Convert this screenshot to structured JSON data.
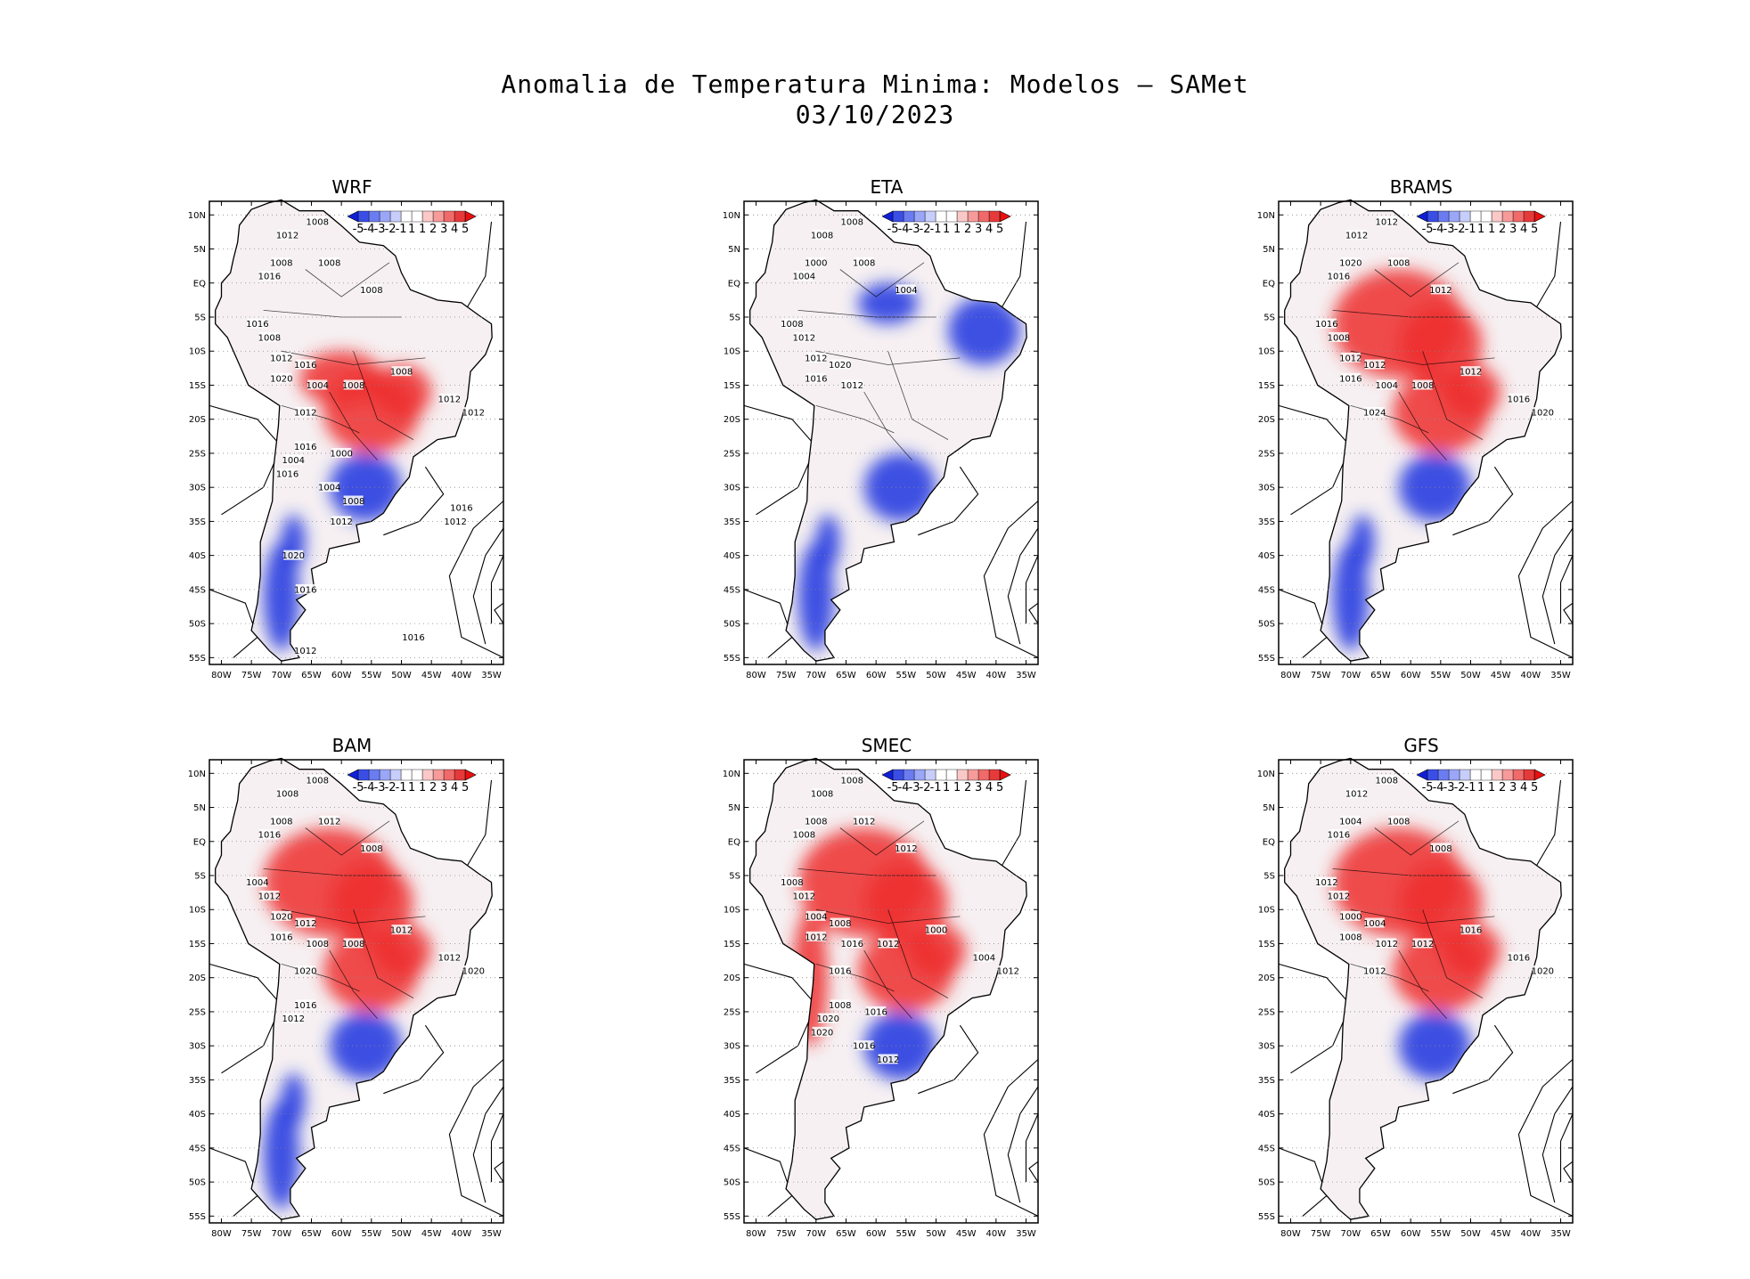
{
  "title": {
    "line1": "Anomalia de Temperatura Minima: Modelos — SAMet",
    "line2": "03/10/2023"
  },
  "axes": {
    "lat_labels": [
      "10N",
      "5N",
      "EQ",
      "5S",
      "10S",
      "15S",
      "20S",
      "25S",
      "30S",
      "35S",
      "40S",
      "45S",
      "50S",
      "55S"
    ],
    "lon_labels": [
      "80W",
      "75W",
      "70W",
      "65W",
      "60W",
      "55W",
      "50W",
      "45W",
      "40W",
      "35W"
    ]
  },
  "colorbar": {
    "labels": [
      "-5",
      "-4",
      "-3",
      "-2",
      "-1",
      "1",
      "1",
      "2",
      "3",
      "4",
      "5"
    ],
    "colors": [
      "#1020d8",
      "#3a4ee6",
      "#6a7cf0",
      "#9aa6f6",
      "#c8cefb",
      "#ffffff",
      "#ffffff",
      "#fbc8c8",
      "#f69a9a",
      "#f06a6a",
      "#e63a3a",
      "#e81010"
    ]
  },
  "panels": [
    {
      "name": "WRF",
      "warm": [
        "center-west",
        "south-brazil-north"
      ],
      "cold": [
        "south",
        "patagonia"
      ],
      "isobars": [
        "1008",
        "1012",
        "1008",
        "1016",
        "1008",
        "1008",
        "1016",
        "1008",
        "1012",
        "1016",
        "1020",
        "1004",
        "1008",
        "1008",
        "1012",
        "1012",
        "1012",
        "1016",
        "1004",
        "1000",
        "1016",
        "1004",
        "1008",
        "1012",
        "1016",
        "1012",
        "1020",
        "1016",
        "1016",
        "1012"
      ]
    },
    {
      "name": "ETA",
      "warm": [],
      "cold": [
        "northeast",
        "south",
        "patagonia"
      ],
      "isobars": [
        "1008",
        "1008",
        "1008",
        "1004",
        "1000",
        "1004",
        "1008",
        "1012",
        "1012",
        "1020",
        "1016",
        "1012"
      ]
    },
    {
      "name": "BRAMS",
      "warm": [
        "amazon",
        "center-west"
      ],
      "cold": [
        "south",
        "patagonia"
      ],
      "isobars": [
        "1012",
        "1012",
        "1008",
        "1016",
        "1020",
        "1012",
        "1016",
        "1008",
        "1012",
        "1012",
        "1016",
        "1004",
        "1008",
        "1012",
        "1016",
        "1020",
        "1024"
      ]
    },
    {
      "name": "BAM",
      "warm": [
        "amazon",
        "center-west"
      ],
      "cold": [
        "south",
        "patagonia"
      ],
      "isobars": [
        "1008",
        "1008",
        "1012",
        "1016",
        "1008",
        "1008",
        "1004",
        "1012",
        "1020",
        "1012",
        "1016",
        "1008",
        "1008",
        "1012",
        "1012",
        "1020",
        "1020",
        "1016",
        "1012"
      ]
    },
    {
      "name": "SMEC",
      "warm": [
        "amazon",
        "center-west",
        "andes"
      ],
      "cold": [
        "south"
      ],
      "isobars": [
        "1008",
        "1008",
        "1012",
        "1008",
        "1008",
        "1012",
        "1008",
        "1012",
        "1004",
        "1008",
        "1012",
        "1016",
        "1012",
        "1000",
        "1004",
        "1012",
        "1016",
        "1008",
        "1020",
        "1016",
        "1020",
        "1016",
        "1012"
      ]
    },
    {
      "name": "GFS",
      "warm": [
        "amazon",
        "center-west"
      ],
      "cold": [
        "south"
      ],
      "isobars": [
        "1008",
        "1012",
        "1008",
        "1016",
        "1004",
        "1008",
        "1012",
        "1012",
        "1000",
        "1004",
        "1008",
        "1012",
        "1012",
        "1016",
        "1016",
        "1020",
        "1012"
      ]
    }
  ]
}
